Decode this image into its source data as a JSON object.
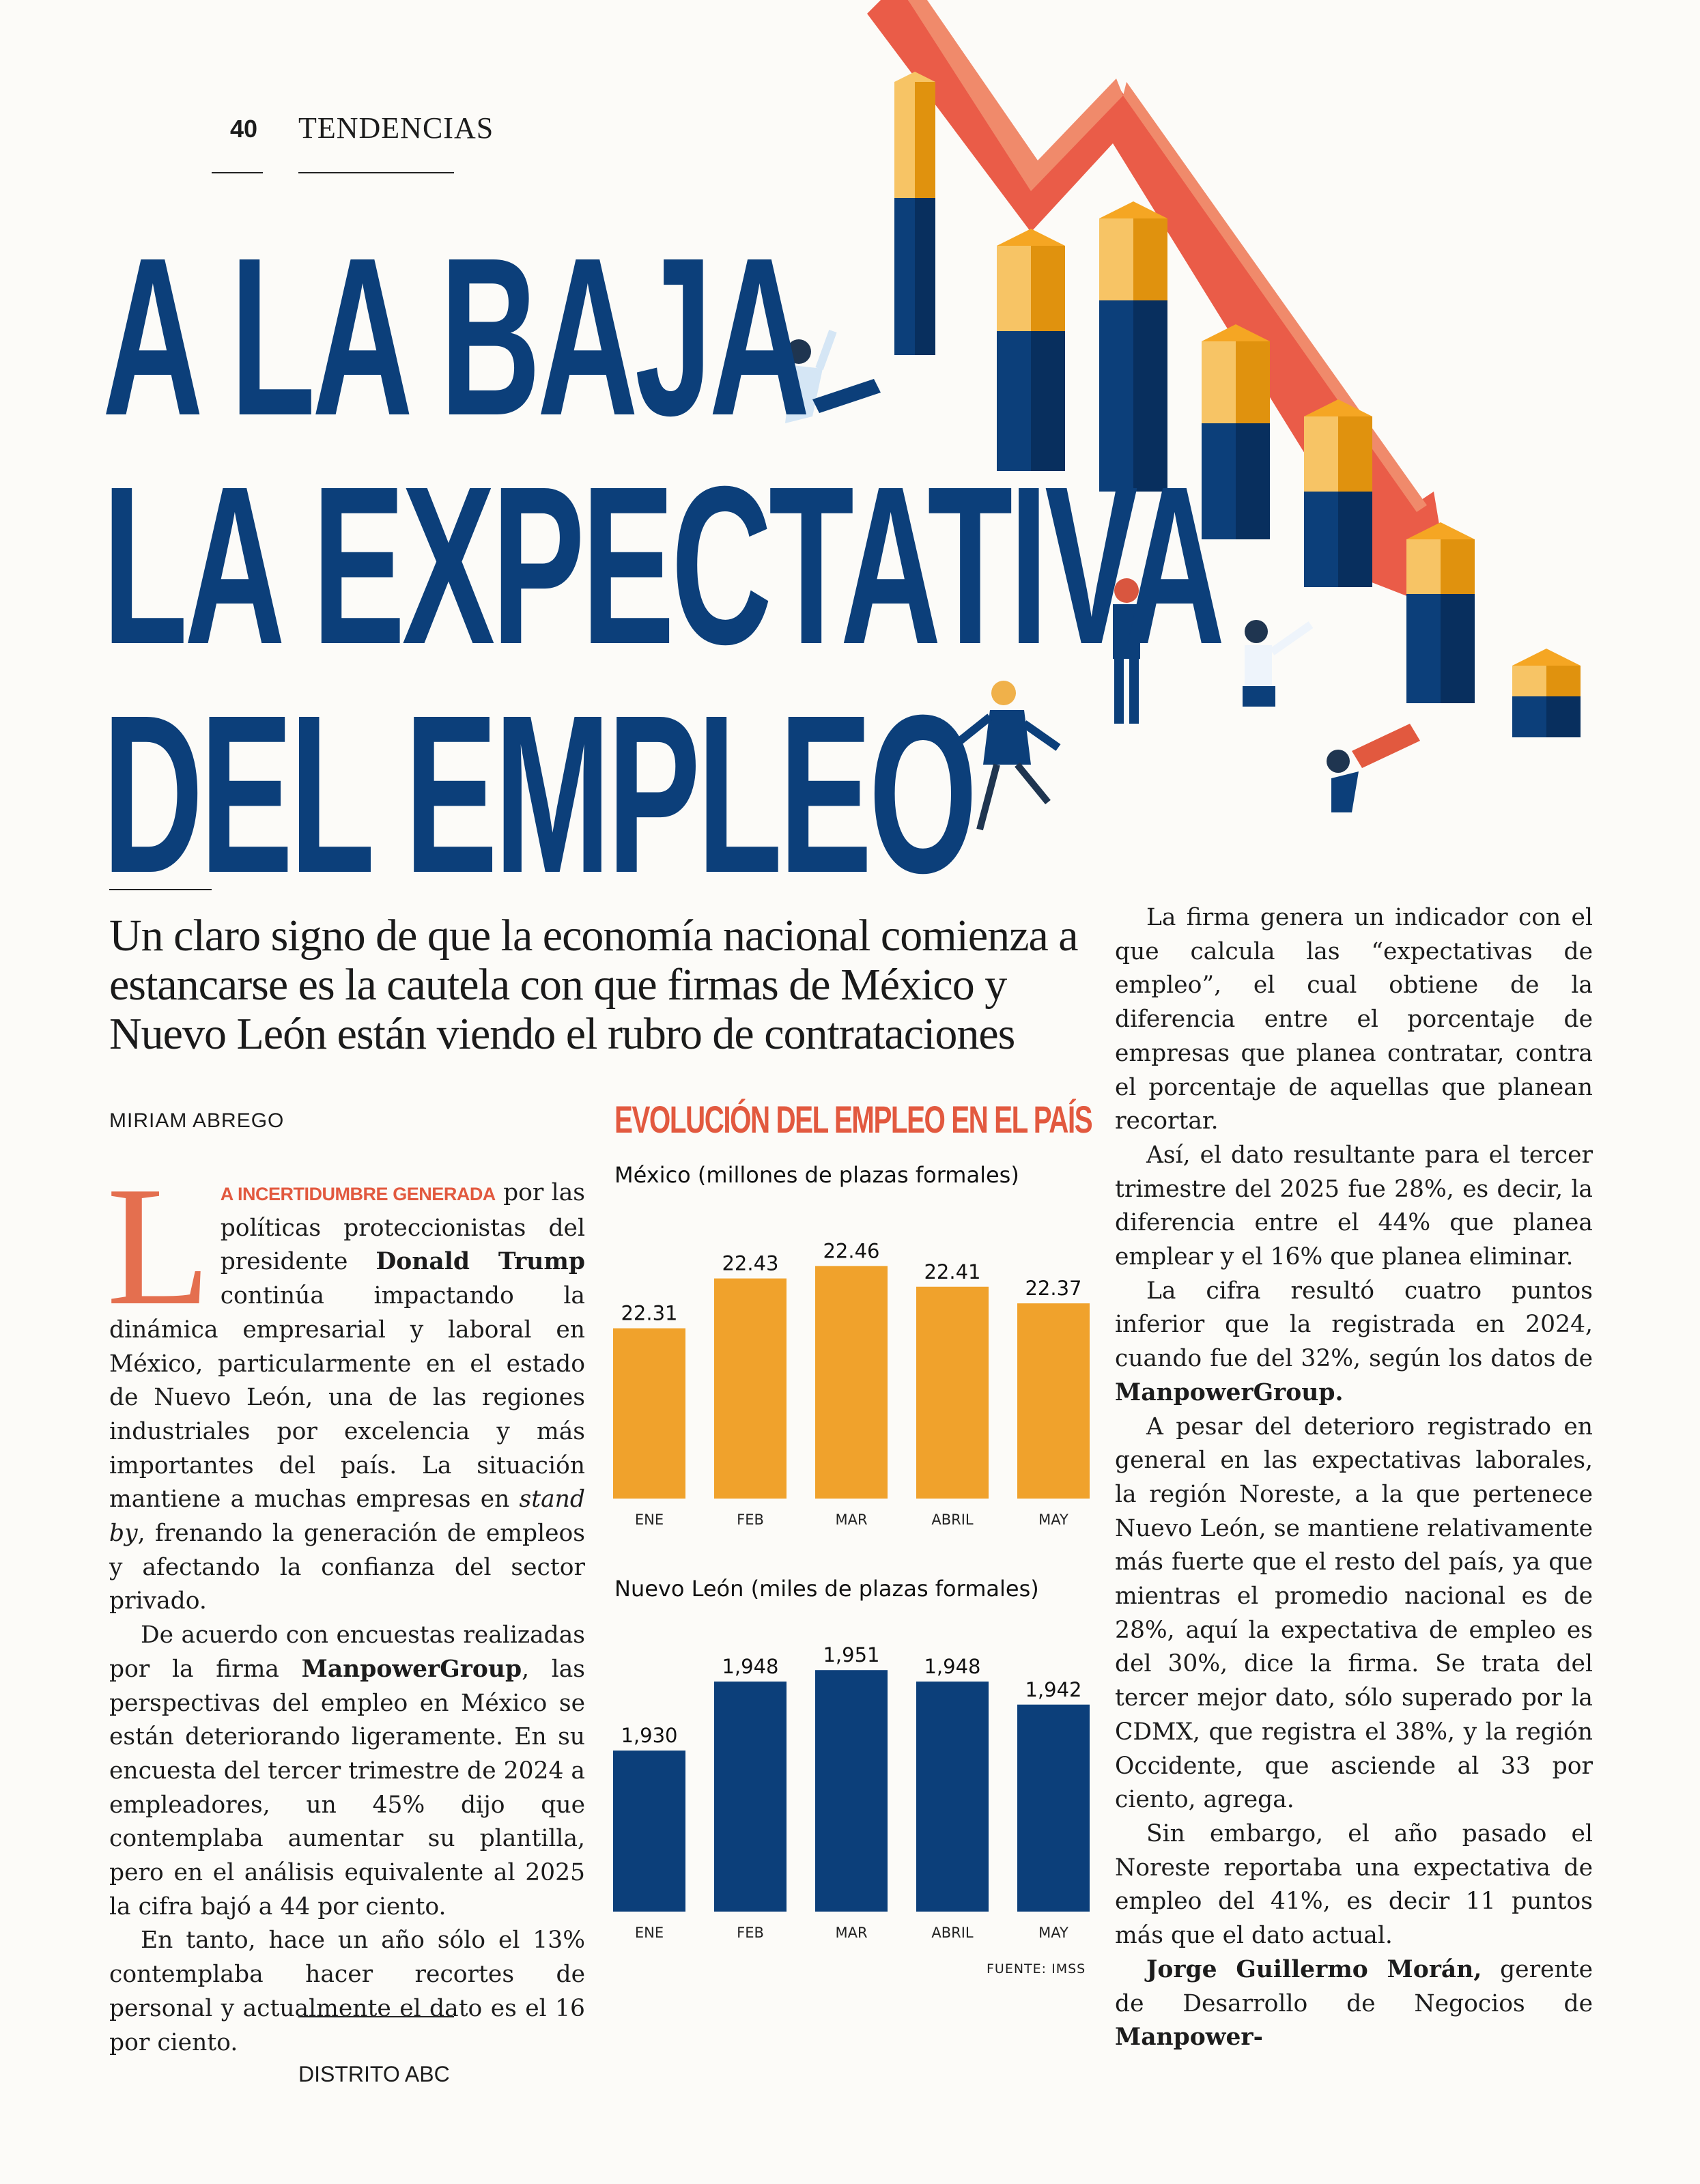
{
  "header": {
    "page_number": "40",
    "section": "TENDENCIAS"
  },
  "headline": {
    "line1": "A LA BAJA",
    "line2": "LA EXPECTATIVA",
    "line3": "DEL EMPLEO"
  },
  "deck": "Un claro signo de que la economía nacional comienza a estancarse es la cautela con que firmas de México y Nuevo León están viendo el rubro de contrataciones",
  "byline": "MIRIAM ABREGO",
  "article": {
    "dropcap": "L",
    "lead_in": "A incertidumbre generada",
    "p1_a": " por las políticas proteccionistas del presidente ",
    "p1_bold": "Donald Trump",
    "p1_b": " continúa impactando la dinámica empresarial y laboral en México, particularmente en el estado de Nuevo León, una de las regiones industriales por excelencia y más importantes del país. La situación mantiene a muchas empresas en ",
    "p1_italic": "stand by",
    "p1_c": ", frenando la generación de empleos y afectando la confianza del sector privado.",
    "p2_a": "De acuerdo con encuestas realizadas por la firma ",
    "p2_bold": "ManpowerGroup",
    "p2_b": ", las perspectivas del empleo en México se están deteriorando ligeramente. En su encuesta del tercer trimestre de 2024 a empleadores, un 45% dijo que contemplaba aumentar su plantilla, pero en el análisis equivalente al 2025 la cifra bajó a 44 por ciento.",
    "p3": "En tanto, hace un año sólo el 13% contemplaba hacer recortes de personal y actualmente el dato es el 16 por ciento.",
    "p4": "La firma genera un indicador con el que calcula las “expectativas de empleo”, el cual obtiene de la diferencia entre el porcentaje de empresas que planea contratar, contra el porcentaje de aquellas que planean recortar.",
    "p5": "Así, el dato resultante para el tercer trimestre del 2025 fue 28%, es decir, la diferencia entre el 44% que planea emplear y el 16% que planea eliminar.",
    "p6_a": "La cifra resultó cuatro puntos inferior que la registrada en 2024, cuando fue del 32%, según los datos de ",
    "p6_bold": "ManpowerGroup.",
    "p7": "A pesar del deterioro registrado en general en las expectativas laborales, la región Noreste, a la que pertenece Nuevo León, se mantiene relativamente más fuerte que el resto del país, ya que mientras el promedio nacional es de 28%, aquí la expectativa de empleo es del 30%, dice la firma. Se trata del tercer mejor dato, sólo superado por la CDMX, que registra el 38%, y la región Occidente, que asciende al 33 por ciento, agrega.",
    "p8": "Sin embargo, el año pasado el Noreste reportaba una expectativa de empleo del 41%, es decir 11 puntos más que el dato actual.",
    "p9_bold1": "Jorge Guillermo Morán,",
    "p9_a": " gerente de Desarrollo de Negocios de ",
    "p9_bold2": "Manpower-"
  },
  "chart_data": [
    {
      "type": "bar",
      "title": "EVOLUCIÓN DEL EMPLEO EN EL PAÍS",
      "subtitle": "México (millones de plazas formales)",
      "categories": [
        "ENE",
        "FEB",
        "MAR",
        "ABRIL",
        "MAY"
      ],
      "values": [
        22.31,
        22.43,
        22.46,
        22.41,
        22.37
      ],
      "labels": [
        "22.31",
        "22.43",
        "22.46",
        "22.41",
        "22.37"
      ],
      "ylim": [
        21.9,
        22.5
      ],
      "color": "#f0a22c"
    },
    {
      "type": "bar",
      "subtitle": "Nuevo León (miles de plazas formales)",
      "categories": [
        "ENE",
        "FEB",
        "MAR",
        "ABRIL",
        "MAY"
      ],
      "values": [
        1930,
        1948,
        1951,
        1948,
        1942
      ],
      "labels": [
        "1,930",
        "1,948",
        "1,951",
        "1,948",
        "1,942"
      ],
      "ylim": [
        1888,
        1953
      ],
      "color": "#0c3f7a"
    }
  ],
  "source": "FUENTE: IMSS",
  "footer": "DISTRITO ABC",
  "colors": {
    "navy": "#0c3f7a",
    "orange": "#f0a22c",
    "coral": "#e2593f"
  }
}
